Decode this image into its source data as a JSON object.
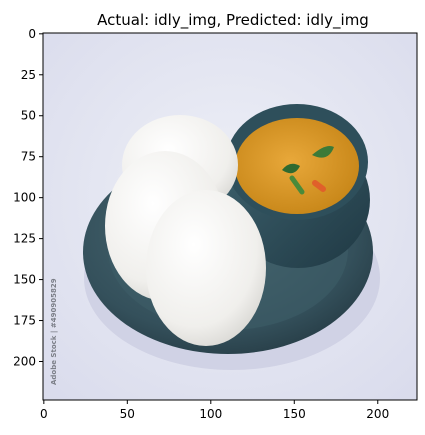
{
  "chart_data": {
    "type": "image",
    "title": "Actual: idly_img, Predicted: idly_img",
    "image_size": [
      224,
      224
    ],
    "xlim": [
      -0.5,
      223.5
    ],
    "ylim": [
      223.5,
      -0.5
    ],
    "xticks": [
      0,
      50,
      100,
      150,
      200
    ],
    "yticks": [
      0,
      25,
      50,
      75,
      100,
      125,
      150,
      175,
      200
    ],
    "grid": false,
    "watermark": "Adobe Stock | #490905829",
    "colors": {
      "background": "#e6e7f2",
      "plate": "#35535e",
      "plate_rim": "#4d6e78",
      "idly": "#f3f2f0",
      "bowl": "#2b4a57",
      "sambar": "#d69a25",
      "leaf": "#3c7a38",
      "carrot": "#e0602a"
    }
  }
}
